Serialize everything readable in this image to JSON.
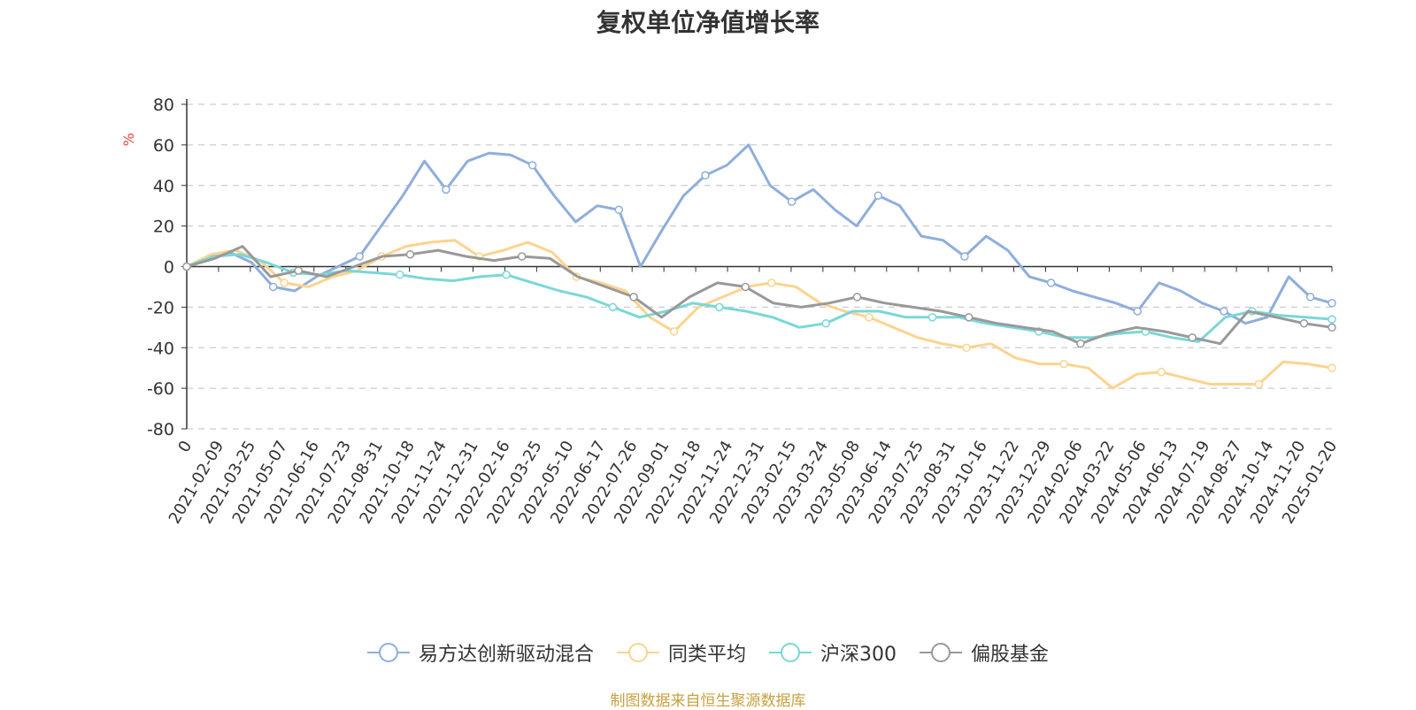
{
  "chart_data": {
    "type": "line",
    "title": "复权单位净值增长率",
    "ylabel": "%",
    "ylim": [
      -80,
      80
    ],
    "yticks": [
      "80",
      "60",
      "40",
      "20",
      "0",
      "-20",
      "-40",
      "-60",
      "-80"
    ],
    "x_tick_labels": [
      "0",
      "2021-02-09",
      "2021-03-25",
      "2021-05-07",
      "2021-06-16",
      "2021-07-23",
      "2021-08-31",
      "2021-10-18",
      "2021-11-24",
      "2021-12-31",
      "2022-02-16",
      "2022-03-25",
      "2022-05-10",
      "2022-06-17",
      "2022-07-26",
      "2022-09-01",
      "2022-10-18",
      "2022-11-24",
      "2022-12-31",
      "2023-02-15",
      "2023-03-24",
      "2023-05-08",
      "2023-06-14",
      "2023-07-25",
      "2023-08-31",
      "2023-10-16",
      "2023-11-22",
      "2023-12-29",
      "2024-02-06",
      "2024-03-22",
      "2024-05-06",
      "2024-06-13",
      "2024-07-19",
      "2024-08-27",
      "2024-10-14",
      "2024-11-20",
      "2025-01-20"
    ],
    "grid": true,
    "legend_position": "bottom",
    "series": [
      {
        "name": "易方达创新驱动混合",
        "color": "#8eaedc",
        "values": [
          0,
          5,
          7,
          2,
          -10,
          -12,
          -5,
          0,
          5,
          20,
          35,
          52,
          38,
          52,
          56,
          55,
          50,
          35,
          22,
          30,
          28,
          0,
          18,
          35,
          45,
          50,
          60,
          40,
          32,
          38,
          28,
          20,
          35,
          30,
          15,
          13,
          5,
          15,
          8,
          -5,
          -8,
          -12,
          -15,
          -18,
          -22,
          -8,
          -12,
          -18,
          -22,
          -28,
          -25,
          -5,
          -15,
          -18
        ]
      },
      {
        "name": "同类平均",
        "color": "#fdd38e",
        "values": [
          0,
          6,
          8,
          3,
          -8,
          -10,
          -5,
          -2,
          5,
          10,
          12,
          13,
          5,
          8,
          12,
          7,
          -5,
          -8,
          -12,
          -25,
          -32,
          -20,
          -15,
          -10,
          -8,
          -10,
          -18,
          -22,
          -25,
          -30,
          -35,
          -38,
          -40,
          -38,
          -45,
          -48,
          -48,
          -50,
          -60,
          -53,
          -52,
          -55,
          -58,
          -58,
          -58,
          -47,
          -48,
          -50
        ]
      },
      {
        "name": "沪深300",
        "color": "#7ad7d8",
        "values": [
          0,
          5,
          6,
          2,
          -3,
          -4,
          -2,
          -3,
          -4,
          -6,
          -7,
          -5,
          -4,
          -8,
          -12,
          -15,
          -20,
          -25,
          -22,
          -18,
          -20,
          -22,
          -25,
          -30,
          -28,
          -22,
          -22,
          -25,
          -25,
          -25,
          -28,
          -30,
          -32,
          -35,
          -35,
          -33,
          -32,
          -35,
          -37,
          -25,
          -22,
          -24,
          -25,
          -26
        ]
      },
      {
        "name": "偏股基金",
        "color": "#999999",
        "values": [
          0,
          4,
          10,
          -5,
          -2,
          -5,
          0,
          5,
          6,
          8,
          5,
          3,
          5,
          4,
          -5,
          -10,
          -15,
          -25,
          -15,
          -8,
          -10,
          -18,
          -20,
          -18,
          -15,
          -18,
          -20,
          -22,
          -25,
          -28,
          -30,
          -32,
          -38,
          -33,
          -30,
          -32,
          -35,
          -38,
          -22,
          -25,
          -28,
          -30
        ]
      }
    ]
  },
  "legend": {
    "items": [
      "易方达创新驱动混合",
      "同类平均",
      "沪深300",
      "偏股基金"
    ]
  },
  "source_note": "制图数据来自恒生聚源数据库"
}
